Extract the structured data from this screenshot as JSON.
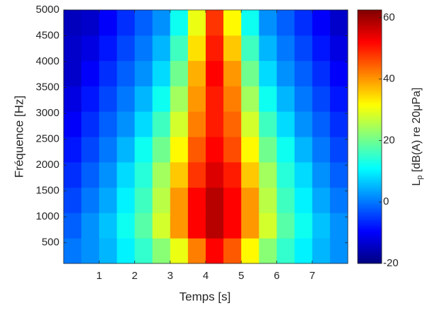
{
  "chart_data": {
    "type": "heatmap",
    "xlabel": "Temps [s]",
    "ylabel": "Fréquence [Hz]",
    "colorbar_label": {
      "main": "L",
      "sub": "p",
      "rest": " [dB(A) re 20μPa]"
    },
    "colormap": "jet",
    "x_edges": [
      0,
      0.5,
      1,
      1.5,
      2,
      2.5,
      3,
      3.5,
      4,
      4.5,
      5,
      5.5,
      6,
      6.5,
      7,
      7.5,
      8
    ],
    "y_edges": [
      100,
      590,
      1080,
      1570,
      2060,
      2550,
      3040,
      3530,
      4020,
      4510,
      5000
    ],
    "z": [
      [
        0,
        2,
        5,
        10,
        15,
        22,
        30,
        42,
        52,
        45,
        32,
        22,
        15,
        10,
        5,
        2
      ],
      [
        -2,
        2,
        6,
        12,
        18,
        28,
        40,
        52,
        58,
        52,
        40,
        28,
        18,
        12,
        6,
        2
      ],
      [
        -4,
        0,
        4,
        10,
        16,
        26,
        40,
        52,
        58,
        52,
        40,
        26,
        16,
        10,
        4,
        0
      ],
      [
        -6,
        -2,
        2,
        8,
        14,
        24,
        36,
        48,
        55,
        50,
        36,
        24,
        14,
        8,
        2,
        -2
      ],
      [
        -8,
        -4,
        0,
        5,
        12,
        20,
        32,
        45,
        52,
        46,
        32,
        20,
        12,
        5,
        0,
        -4
      ],
      [
        -10,
        -6,
        -2,
        2,
        8,
        16,
        28,
        42,
        50,
        44,
        28,
        16,
        8,
        2,
        -2,
        -6
      ],
      [
        -12,
        -8,
        -4,
        0,
        5,
        12,
        24,
        40,
        50,
        42,
        24,
        12,
        5,
        0,
        -4,
        -8
      ],
      [
        -14,
        -10,
        -6,
        -2,
        2,
        8,
        20,
        38,
        52,
        40,
        20,
        8,
        2,
        -2,
        -6,
        -10
      ],
      [
        -14,
        -12,
        -8,
        -4,
        0,
        5,
        16,
        34,
        50,
        36,
        16,
        5,
        0,
        -4,
        -8,
        -12
      ],
      [
        -15,
        -14,
        -10,
        -6,
        -2,
        2,
        12,
        30,
        48,
        32,
        12,
        2,
        -2,
        -6,
        -10,
        -14
      ]
    ],
    "xlim": [
      0,
      8
    ],
    "ylim": [
      100,
      5000
    ],
    "clim": [
      -20,
      62.5
    ],
    "xticks": [
      1,
      2,
      3,
      4,
      5,
      6,
      7
    ],
    "yticks": [
      500,
      1000,
      1500,
      2000,
      2500,
      3000,
      3500,
      4000,
      4500,
      5000
    ],
    "cticks": [
      -20,
      0,
      20,
      40,
      60
    ]
  }
}
